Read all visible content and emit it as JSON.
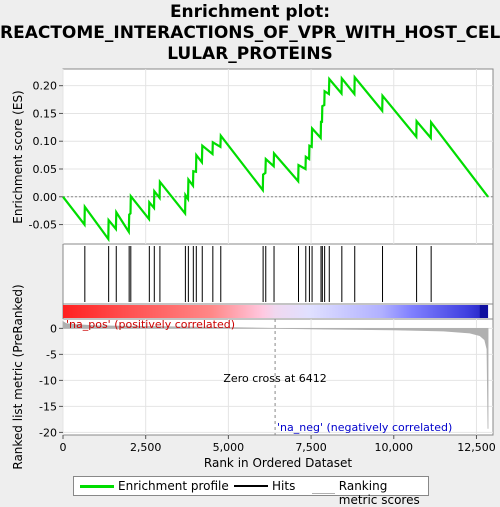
{
  "title_line1": "Enrichment plot:",
  "title_line2": "REACTOME_INTERACTIONS_OF_VPR_WITH_HOST_CEL",
  "title_line3": "LULAR_PROTEINS",
  "colors": {
    "es_line": "#00dd00",
    "hits": "#000000",
    "metric": "#b0b0b0",
    "zero_cross": "#888888",
    "pos_label": "#cc0000",
    "neg_label": "#0000cc"
  },
  "chart_data": [
    {
      "type": "line",
      "name": "enrichment-profile",
      "ylabel": "Enrichment score (ES)",
      "xlim": [
        0,
        13000
      ],
      "ylim": [
        -0.085,
        0.23
      ],
      "yticks": [
        -0.05,
        0.0,
        0.05,
        0.1,
        0.15,
        0.2
      ],
      "ytick_labels": [
        "-0.05",
        "0.00",
        "0.05",
        "0.10",
        "0.15",
        "0.20"
      ],
      "points": [
        [
          0,
          0.0
        ],
        [
          650,
          -0.05
        ],
        [
          660,
          -0.018
        ],
        [
          1370,
          -0.076
        ],
        [
          1380,
          -0.042
        ],
        [
          1600,
          -0.058
        ],
        [
          1610,
          -0.028
        ],
        [
          1990,
          -0.063
        ],
        [
          2000,
          -0.032
        ],
        [
          2040,
          -0.03
        ],
        [
          2050,
          0.001
        ],
        [
          2600,
          -0.04
        ],
        [
          2610,
          -0.01
        ],
        [
          2750,
          -0.02
        ],
        [
          2760,
          0.01
        ],
        [
          2920,
          -0.002
        ],
        [
          2930,
          0.027
        ],
        [
          3690,
          -0.03
        ],
        [
          3700,
          0.003
        ],
        [
          3780,
          -0.004
        ],
        [
          3790,
          0.031
        ],
        [
          3930,
          0.02
        ],
        [
          3940,
          0.046
        ],
        [
          4020,
          0.045
        ],
        [
          4030,
          0.075
        ],
        [
          4200,
          0.062
        ],
        [
          4210,
          0.092
        ],
        [
          4520,
          0.077
        ],
        [
          4530,
          0.098
        ],
        [
          4760,
          0.09
        ],
        [
          4770,
          0.11
        ],
        [
          6040,
          0.012
        ],
        [
          6050,
          0.04
        ],
        [
          6120,
          0.043
        ],
        [
          6130,
          0.068
        ],
        [
          6370,
          0.055
        ],
        [
          6380,
          0.078
        ],
        [
          7110,
          0.028
        ],
        [
          7120,
          0.057
        ],
        [
          7330,
          0.05
        ],
        [
          7340,
          0.072
        ],
        [
          7440,
          0.068
        ],
        [
          7450,
          0.092
        ],
        [
          7520,
          0.09
        ],
        [
          7530,
          0.123
        ],
        [
          7790,
          0.106
        ],
        [
          7800,
          0.135
        ],
        [
          7830,
          0.135
        ],
        [
          7840,
          0.163
        ],
        [
          7900,
          0.165
        ],
        [
          7910,
          0.19
        ],
        [
          8040,
          0.185
        ],
        [
          8050,
          0.212
        ],
        [
          8420,
          0.186
        ],
        [
          8430,
          0.213
        ],
        [
          8810,
          0.185
        ],
        [
          8820,
          0.215
        ],
        [
          9650,
          0.155
        ],
        [
          9660,
          0.182
        ],
        [
          10680,
          0.108
        ],
        [
          10690,
          0.136
        ],
        [
          11120,
          0.106
        ],
        [
          11130,
          0.134
        ],
        [
          12850,
          0.0
        ]
      ]
    },
    {
      "type": "scatter",
      "name": "hits",
      "x": [
        660,
        1380,
        1610,
        2000,
        2050,
        2610,
        2760,
        2930,
        3700,
        3790,
        3940,
        4030,
        4210,
        4530,
        4770,
        6050,
        6130,
        6380,
        7120,
        7340,
        7450,
        7530,
        7800,
        7840,
        7910,
        8050,
        8430,
        8820,
        9660,
        10690,
        11130
      ]
    },
    {
      "type": "area",
      "name": "ranking-metric",
      "ylabel": "Ranked list metric (PreRanked)",
      "xlabel": "Rank in Ordered Dataset",
      "xlim": [
        0,
        13000
      ],
      "ylim": [
        -20.5,
        1.8
      ],
      "xticks": [
        0,
        2500,
        5000,
        7500,
        10000,
        12500
      ],
      "xtick_labels": [
        "0",
        "2,500",
        "5,000",
        "7,500",
        "10,000",
        "12,500"
      ],
      "yticks": [
        0,
        -5,
        -10,
        -15,
        -20
      ],
      "ytick_labels": [
        "0",
        "-5",
        "-10",
        "-15",
        "-20"
      ],
      "points": [
        [
          0,
          1.3
        ],
        [
          100,
          0.9
        ],
        [
          400,
          0.7
        ],
        [
          1000,
          0.5
        ],
        [
          2500,
          0.35
        ],
        [
          4500,
          0.2
        ],
        [
          6412,
          0.0
        ],
        [
          8000,
          -0.15
        ],
        [
          10000,
          -0.3
        ],
        [
          11500,
          -0.5
        ],
        [
          12300,
          -0.9
        ],
        [
          12600,
          -1.4
        ],
        [
          12750,
          -2.2
        ],
        [
          12820,
          -4.0
        ],
        [
          12850,
          -19.3
        ]
      ],
      "zero_cross_rank": 6412,
      "annotations": {
        "zero_cross": "Zero cross at 6412",
        "pos": "'na_pos' (positively correlated)",
        "neg": "'na_neg' (negatively correlated)"
      }
    }
  ],
  "legend": {
    "enrichment": "Enrichment profile",
    "hits": "Hits",
    "metric": "Ranking metric scores"
  }
}
